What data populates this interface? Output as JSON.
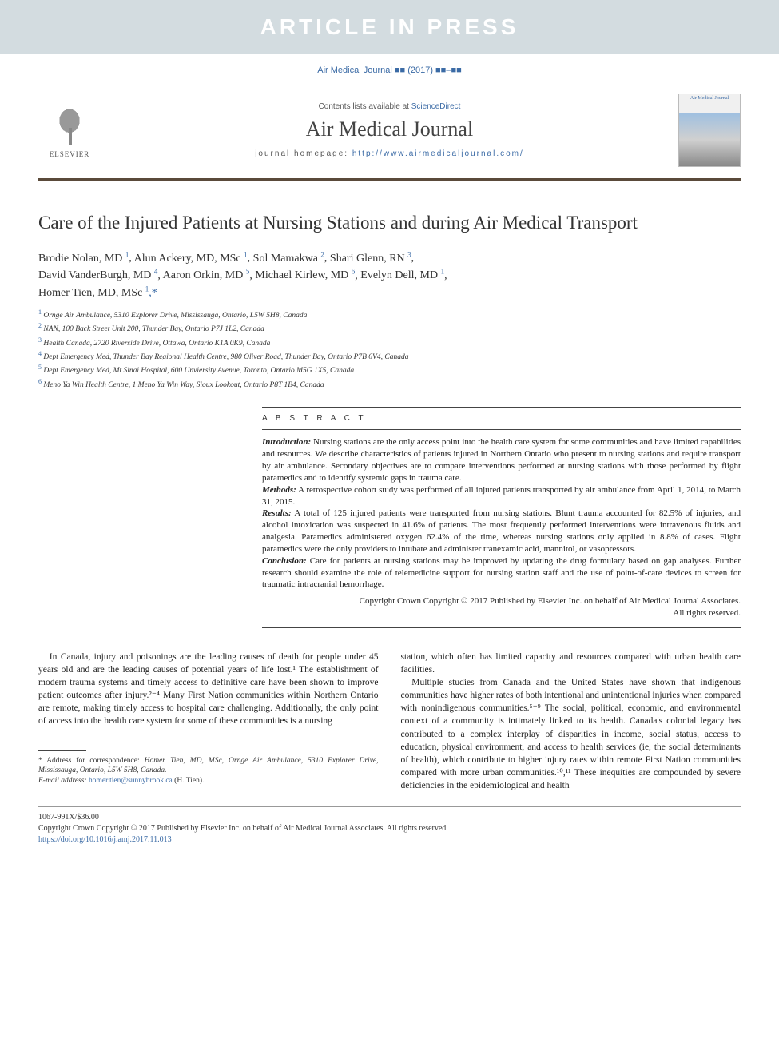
{
  "banner": {
    "text": "ARTICLE IN PRESS"
  },
  "citation": "Air Medical Journal ■■ (2017) ■■–■■",
  "header": {
    "contents_prefix": "Contents lists available at ",
    "contents_link": "ScienceDirect",
    "journal_name": "Air Medical Journal",
    "homepage_prefix": "journal homepage: ",
    "homepage_url": "http://www.airmedicaljournal.com/",
    "elsevier_label": "ELSEVIER",
    "cover_title": "Air Medical Journal"
  },
  "article": {
    "title": "Care of the Injured Patients at Nursing Stations and during Air Medical Transport",
    "authors": [
      {
        "name": "Brodie Nolan, MD",
        "aff": "1"
      },
      {
        "name": "Alun Ackery, MD, MSc",
        "aff": "1"
      },
      {
        "name": "Sol Mamakwa",
        "aff": "2"
      },
      {
        "name": "Shari Glenn, RN",
        "aff": "3"
      },
      {
        "name": "David VanderBurgh, MD",
        "aff": "4"
      },
      {
        "name": "Aaron Orkin, MD",
        "aff": "5"
      },
      {
        "name": "Michael Kirlew, MD",
        "aff": "6"
      },
      {
        "name": "Evelyn Dell, MD",
        "aff": "1"
      },
      {
        "name": "Homer Tien, MD, MSc",
        "aff": "1",
        "corresponding": true
      }
    ],
    "affiliations": [
      {
        "num": "1",
        "text": "Ornge Air Ambulance, 5310 Explorer Drive, Mississauga, Ontario, L5W 5H8, Canada"
      },
      {
        "num": "2",
        "text": "NAN, 100 Back Street Unit 200, Thunder Bay, Ontario P7J 1L2, Canada"
      },
      {
        "num": "3",
        "text": "Health Canada, 2720 Riverside Drive, Ottawa, Ontario K1A 0K9, Canada"
      },
      {
        "num": "4",
        "text": "Dept Emergency Med, Thunder Bay Regional Health Centre, 980 Oliver Road, Thunder Bay, Ontario P7B 6V4, Canada"
      },
      {
        "num": "5",
        "text": "Dept Emergency Med, Mt Sinai Hospital, 600 Unviersity Avenue, Toronto, Ontario M5G 1X5, Canada"
      },
      {
        "num": "6",
        "text": "Meno Ya Win Health Centre, 1 Meno Ya Win Way, Sioux Lookout, Ontario P8T 1B4, Canada"
      }
    ]
  },
  "abstract": {
    "heading": "A B S T R A C T",
    "sections": [
      {
        "label": "Introduction:",
        "text": " Nursing stations are the only access point into the health care system for some communities and have limited capabilities and resources. We describe characteristics of patients injured in Northern Ontario who present to nursing stations and require transport by air ambulance. Secondary objectives are to compare interventions performed at nursing stations with those performed by flight paramedics and to identify systemic gaps in trauma care."
      },
      {
        "label": "Methods:",
        "text": " A retrospective cohort study was performed of all injured patients transported by air ambulance from April 1, 2014, to March 31, 2015."
      },
      {
        "label": "Results:",
        "text": " A total of 125 injured patients were transported from nursing stations. Blunt trauma accounted for 82.5% of injuries, and alcohol intoxication was suspected in 41.6% of patients. The most frequently performed interventions were intravenous fluids and analgesia. Paramedics administered oxygen 62.4% of the time, whereas nursing stations only applied in 8.8% of cases. Flight paramedics were the only providers to intubate and administer tranexamic acid, mannitol, or vasopressors."
      },
      {
        "label": "Conclusion:",
        "text": " Care for patients at nursing stations may be improved by updating the drug formulary based on gap analyses. Further research should examine the role of telemedicine support for nursing station staff and the use of point-of-care devices to screen for traumatic intracranial hemorrhage."
      }
    ],
    "copyright1": "Copyright Crown Copyright © 2017 Published by Elsevier Inc. on behalf of Air Medical Journal Associates.",
    "copyright2": "All rights reserved."
  },
  "body": {
    "col1": "In Canada, injury and poisonings are the leading causes of death for people under 45 years old and are the leading causes of potential years of life lost.¹ The establishment of modern trauma systems and timely access to definitive care have been shown to improve patient outcomes after injury.²⁻⁴ Many First Nation communities within Northern Ontario are remote, making timely access to hospital care challenging. Additionally, the only point of access into the health care system for some of these communities is a nursing",
    "col2_p1": "station, which often has limited capacity and resources compared with urban health care facilities.",
    "col2_p2": "Multiple studies from Canada and the United States have shown that indigenous communities have higher rates of both intentional and unintentional injuries when compared with nonindigenous communities.⁵⁻⁹ The social, political, economic, and environmental context of a community is intimately linked to its health. Canada's colonial legacy has contributed to a complex interplay of disparities in income, social status, access to education, physical environment, and access to health services (ie, the social determinants of health), which contribute to higher injury rates within remote First Nation communities compared with more urban communities.¹⁰,¹¹ These inequities are compounded by severe deficiencies in the epidemiological and health"
  },
  "footnote": {
    "corr_label": "* Address for correspondence:",
    "corr_text": "Homer Tien, MD, MSc, Ornge Air Ambulance, 5310 Explorer Drive, Mississauga, Ontario, L5W 5H8, Canada.",
    "email_label": "E-mail address:",
    "email": "homer.tien@sunnybrook.ca",
    "email_suffix": "(H. Tien)."
  },
  "footer": {
    "issn": "1067-991X/$36.00",
    "copyright": "Copyright Crown Copyright © 2017 Published by Elsevier Inc. on behalf of Air Medical Journal Associates. All rights reserved.",
    "doi": "https://doi.org/10.1016/j.amj.2017.11.013"
  },
  "refs": {
    "r1": "1",
    "r24": "2-4",
    "r59": "5-9",
    "r1011": "10,11"
  }
}
